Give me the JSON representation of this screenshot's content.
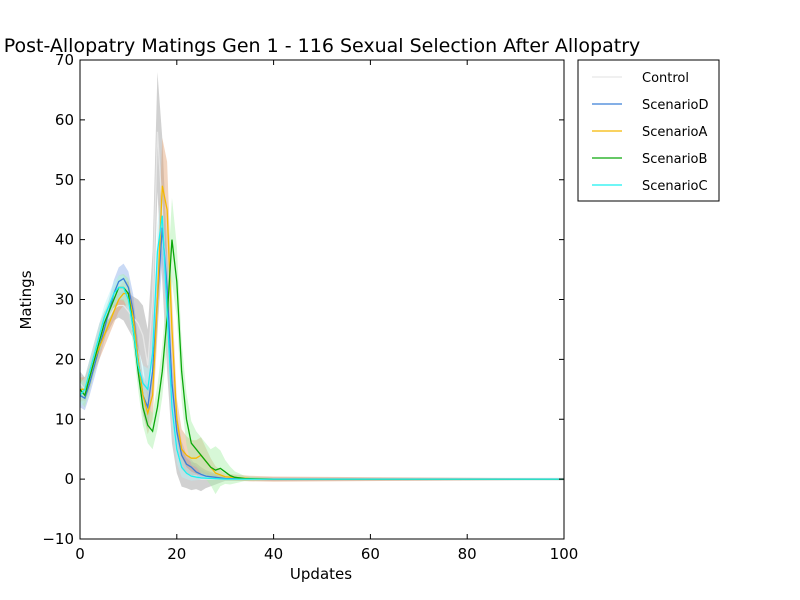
{
  "chart_data": {
    "type": "line",
    "title": "Post-Allopatry Matings Gen 1 - 116 Sexual Selection After Allopatry",
    "xlabel": "Updates",
    "ylabel": "Matings",
    "xlim": [
      0,
      100
    ],
    "ylim": [
      -10,
      70
    ],
    "xticks": [
      0,
      20,
      40,
      60,
      80,
      100
    ],
    "yticks": [
      -10,
      0,
      10,
      20,
      30,
      40,
      50,
      60,
      70
    ],
    "grid": false,
    "legend_position": "outside-right-top",
    "series": [
      {
        "name": "Control",
        "color": "#e6e6e6",
        "band_color": "#9a9a9a",
        "points": [
          [
            0,
            16
          ],
          [
            1,
            15
          ],
          [
            2,
            18
          ],
          [
            3,
            21
          ],
          [
            4,
            24
          ],
          [
            5,
            26
          ],
          [
            6,
            27
          ],
          [
            7,
            28.5
          ],
          [
            8,
            29
          ],
          [
            9,
            29
          ],
          [
            10,
            28
          ],
          [
            11,
            27
          ],
          [
            12,
            26
          ],
          [
            13,
            24
          ],
          [
            14,
            19
          ],
          [
            15,
            30
          ],
          [
            16,
            58
          ],
          [
            17,
            45
          ],
          [
            18,
            28
          ],
          [
            19,
            12
          ],
          [
            20,
            5
          ],
          [
            21,
            2
          ],
          [
            22,
            1
          ],
          [
            23,
            0.5
          ],
          [
            24,
            0.5
          ],
          [
            25,
            0
          ],
          [
            26,
            0
          ],
          [
            30,
            0
          ],
          [
            40,
            0
          ],
          [
            50,
            0
          ],
          [
            60,
            0
          ],
          [
            70,
            0
          ],
          [
            80,
            0
          ],
          [
            90,
            0
          ],
          [
            100,
            0
          ]
        ],
        "spread": [
          [
            0,
            2
          ],
          [
            3,
            2
          ],
          [
            8,
            2
          ],
          [
            12,
            4
          ],
          [
            14,
            6
          ],
          [
            16,
            10
          ],
          [
            17,
            12
          ],
          [
            18,
            10
          ],
          [
            19,
            6
          ],
          [
            20,
            4
          ],
          [
            22,
            2.5
          ],
          [
            25,
            2
          ],
          [
            27,
            1
          ],
          [
            30,
            0.3
          ],
          [
            100,
            0.2
          ]
        ]
      },
      {
        "name": "ScenarioD",
        "color": "#3a7fd8",
        "band_color": "#8aaee8",
        "points": [
          [
            0,
            14
          ],
          [
            1,
            13.5
          ],
          [
            2,
            16
          ],
          [
            3,
            19
          ],
          [
            4,
            22
          ],
          [
            5,
            25
          ],
          [
            6,
            28
          ],
          [
            7,
            31
          ],
          [
            8,
            33
          ],
          [
            9,
            33.5
          ],
          [
            10,
            32
          ],
          [
            11,
            28
          ],
          [
            12,
            20
          ],
          [
            13,
            14
          ],
          [
            14,
            12
          ],
          [
            15,
            18
          ],
          [
            16,
            30
          ],
          [
            17,
            42
          ],
          [
            18,
            32
          ],
          [
            19,
            16
          ],
          [
            20,
            8
          ],
          [
            21,
            4
          ],
          [
            22,
            2.5
          ],
          [
            23,
            2
          ],
          [
            24,
            1.2
          ],
          [
            25,
            0.8
          ],
          [
            26,
            0.5
          ],
          [
            28,
            0.3
          ],
          [
            30,
            0.1
          ],
          [
            40,
            0
          ],
          [
            100,
            0
          ]
        ],
        "spread": [
          [
            0,
            2
          ],
          [
            5,
            2
          ],
          [
            9,
            2.5
          ],
          [
            12,
            3
          ],
          [
            15,
            4
          ],
          [
            17,
            6
          ],
          [
            19,
            4
          ],
          [
            22,
            1.5
          ],
          [
            26,
            0.6
          ],
          [
            30,
            0.2
          ],
          [
            100,
            0.1
          ]
        ]
      },
      {
        "name": "ScenarioA",
        "color": "#f5b800",
        "band_color": "#e0a070",
        "points": [
          [
            0,
            15
          ],
          [
            1,
            15
          ],
          [
            2,
            17
          ],
          [
            3,
            20
          ],
          [
            4,
            22
          ],
          [
            5,
            24
          ],
          [
            6,
            26
          ],
          [
            7,
            28
          ],
          [
            8,
            30
          ],
          [
            9,
            31
          ],
          [
            10,
            31
          ],
          [
            11,
            27
          ],
          [
            12,
            20
          ],
          [
            13,
            14
          ],
          [
            14,
            11
          ],
          [
            15,
            14
          ],
          [
            16,
            30
          ],
          [
            17,
            49
          ],
          [
            18,
            45
          ],
          [
            19,
            25
          ],
          [
            20,
            10
          ],
          [
            21,
            5
          ],
          [
            22,
            4
          ],
          [
            23,
            3.5
          ],
          [
            24,
            3.5
          ],
          [
            25,
            4
          ],
          [
            26,
            3
          ],
          [
            27,
            2
          ],
          [
            28,
            1
          ],
          [
            30,
            0.4
          ],
          [
            35,
            0.1
          ],
          [
            40,
            0
          ],
          [
            100,
            0
          ]
        ],
        "spread": [
          [
            0,
            2
          ],
          [
            6,
            2
          ],
          [
            10,
            2
          ],
          [
            13,
            3
          ],
          [
            15,
            4
          ],
          [
            17,
            8
          ],
          [
            18,
            8
          ],
          [
            20,
            3.5
          ],
          [
            23,
            3
          ],
          [
            25,
            3
          ],
          [
            27,
            1.5
          ],
          [
            30,
            0.5
          ],
          [
            100,
            0.1
          ]
        ]
      },
      {
        "name": "ScenarioB",
        "color": "#0aa80a",
        "band_color": "#a6f0a6",
        "points": [
          [
            0,
            15
          ],
          [
            1,
            14
          ],
          [
            2,
            17
          ],
          [
            3,
            20
          ],
          [
            4,
            23
          ],
          [
            5,
            26
          ],
          [
            6,
            28
          ],
          [
            7,
            30
          ],
          [
            8,
            32
          ],
          [
            9,
            32
          ],
          [
            10,
            31
          ],
          [
            11,
            25
          ],
          [
            12,
            18
          ],
          [
            13,
            12
          ],
          [
            14,
            9
          ],
          [
            15,
            8
          ],
          [
            16,
            12
          ],
          [
            17,
            18
          ],
          [
            18,
            27
          ],
          [
            19,
            40
          ],
          [
            20,
            33
          ],
          [
            21,
            18
          ],
          [
            22,
            10
          ],
          [
            23,
            6
          ],
          [
            24,
            5
          ],
          [
            25,
            4
          ],
          [
            26,
            3
          ],
          [
            27,
            2
          ],
          [
            28,
            1.5
          ],
          [
            29,
            1.8
          ],
          [
            30,
            1.2
          ],
          [
            31,
            0.6
          ],
          [
            32,
            0.3
          ],
          [
            34,
            0.1
          ],
          [
            40,
            0
          ],
          [
            100,
            0
          ]
        ],
        "spread": [
          [
            0,
            2
          ],
          [
            8,
            2
          ],
          [
            12,
            3
          ],
          [
            15,
            3
          ],
          [
            18,
            5
          ],
          [
            19,
            7
          ],
          [
            21,
            5
          ],
          [
            24,
            3
          ],
          [
            27,
            3
          ],
          [
            28,
            4
          ],
          [
            30,
            2
          ],
          [
            33,
            0.5
          ],
          [
            40,
            0.1
          ],
          [
            100,
            0.1
          ]
        ]
      },
      {
        "name": "ScenarioC",
        "color": "#19f0f0",
        "band_color": "#b6f2f8",
        "points": [
          [
            0,
            14
          ],
          [
            1,
            15
          ],
          [
            2,
            18
          ],
          [
            3,
            21
          ],
          [
            4,
            24
          ],
          [
            5,
            27
          ],
          [
            6,
            29
          ],
          [
            7,
            31
          ],
          [
            8,
            32
          ],
          [
            9,
            32
          ],
          [
            10,
            30
          ],
          [
            11,
            25
          ],
          [
            12,
            19
          ],
          [
            13,
            16
          ],
          [
            14,
            15
          ],
          [
            15,
            21
          ],
          [
            16,
            38
          ],
          [
            17,
            44
          ],
          [
            18,
            28
          ],
          [
            19,
            12
          ],
          [
            20,
            5
          ],
          [
            21,
            2
          ],
          [
            22,
            1
          ],
          [
            23,
            0.5
          ],
          [
            25,
            0.2
          ],
          [
            30,
            0
          ],
          [
            40,
            0
          ],
          [
            100,
            0
          ]
        ],
        "spread": [
          [
            0,
            2
          ],
          [
            7,
            2
          ],
          [
            10,
            2
          ],
          [
            13,
            3
          ],
          [
            15,
            4
          ],
          [
            17,
            5
          ],
          [
            19,
            3
          ],
          [
            22,
            1
          ],
          [
            25,
            0.3
          ],
          [
            30,
            0.1
          ],
          [
            100,
            0.1
          ]
        ]
      }
    ]
  }
}
